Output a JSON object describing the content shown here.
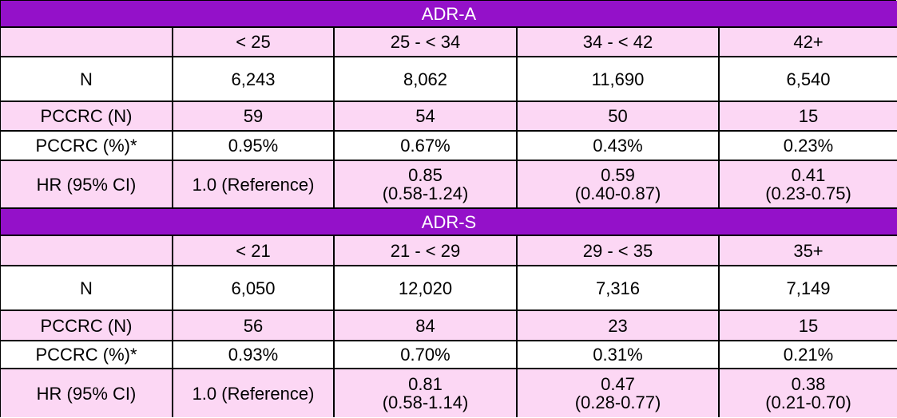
{
  "tables": [
    {
      "title": "ADR-A",
      "headers": [
        "",
        "< 25",
        "25 - < 34",
        "34 - < 42",
        "42+"
      ],
      "rows": [
        {
          "label": "N",
          "cells": [
            "6,243",
            "8,062",
            "11,690",
            "6,540"
          ]
        },
        {
          "label": "PCCRC (N)",
          "cells": [
            "59",
            "54",
            "50",
            "15"
          ]
        },
        {
          "label": "PCCRC (%)*",
          "cells": [
            "0.95%",
            "0.67%",
            "0.43%",
            "0.23%"
          ]
        },
        {
          "label": "HR (95% CI)",
          "cells": [
            {
              "line1": "1.0 (Reference)",
              "line2": ""
            },
            {
              "line1": "0.85",
              "line2": "(0.58-1.24)"
            },
            {
              "line1": "0.59",
              "line2": "(0.40-0.87)"
            },
            {
              "line1": "0.41",
              "line2": "(0.23-0.75)"
            }
          ]
        }
      ]
    },
    {
      "title": "ADR-S",
      "headers": [
        "",
        "< 21",
        "21 - < 29",
        "29 - < 35",
        "35+"
      ],
      "rows": [
        {
          "label": "N",
          "cells": [
            "6,050",
            "12,020",
            "7,316",
            "7,149"
          ]
        },
        {
          "label": "PCCRC (N)",
          "cells": [
            "56",
            "84",
            "23",
            "15"
          ]
        },
        {
          "label": "PCCRC (%)*",
          "cells": [
            "0.93%",
            "0.70%",
            "0.31%",
            "0.21%"
          ]
        },
        {
          "label": "HR (95% CI)",
          "cells": [
            {
              "line1": "1.0 (Reference)",
              "line2": ""
            },
            {
              "line1": "0.81",
              "line2": "(0.58-1.14)"
            },
            {
              "line1": "0.47",
              "line2": "(0.28-0.77)"
            },
            {
              "line1": "0.38",
              "line2": "(0.21-0.70)"
            }
          ]
        }
      ]
    }
  ],
  "colors": {
    "band": "#9411c9",
    "pink": "#fcd7f4",
    "white": "#ffffff"
  }
}
